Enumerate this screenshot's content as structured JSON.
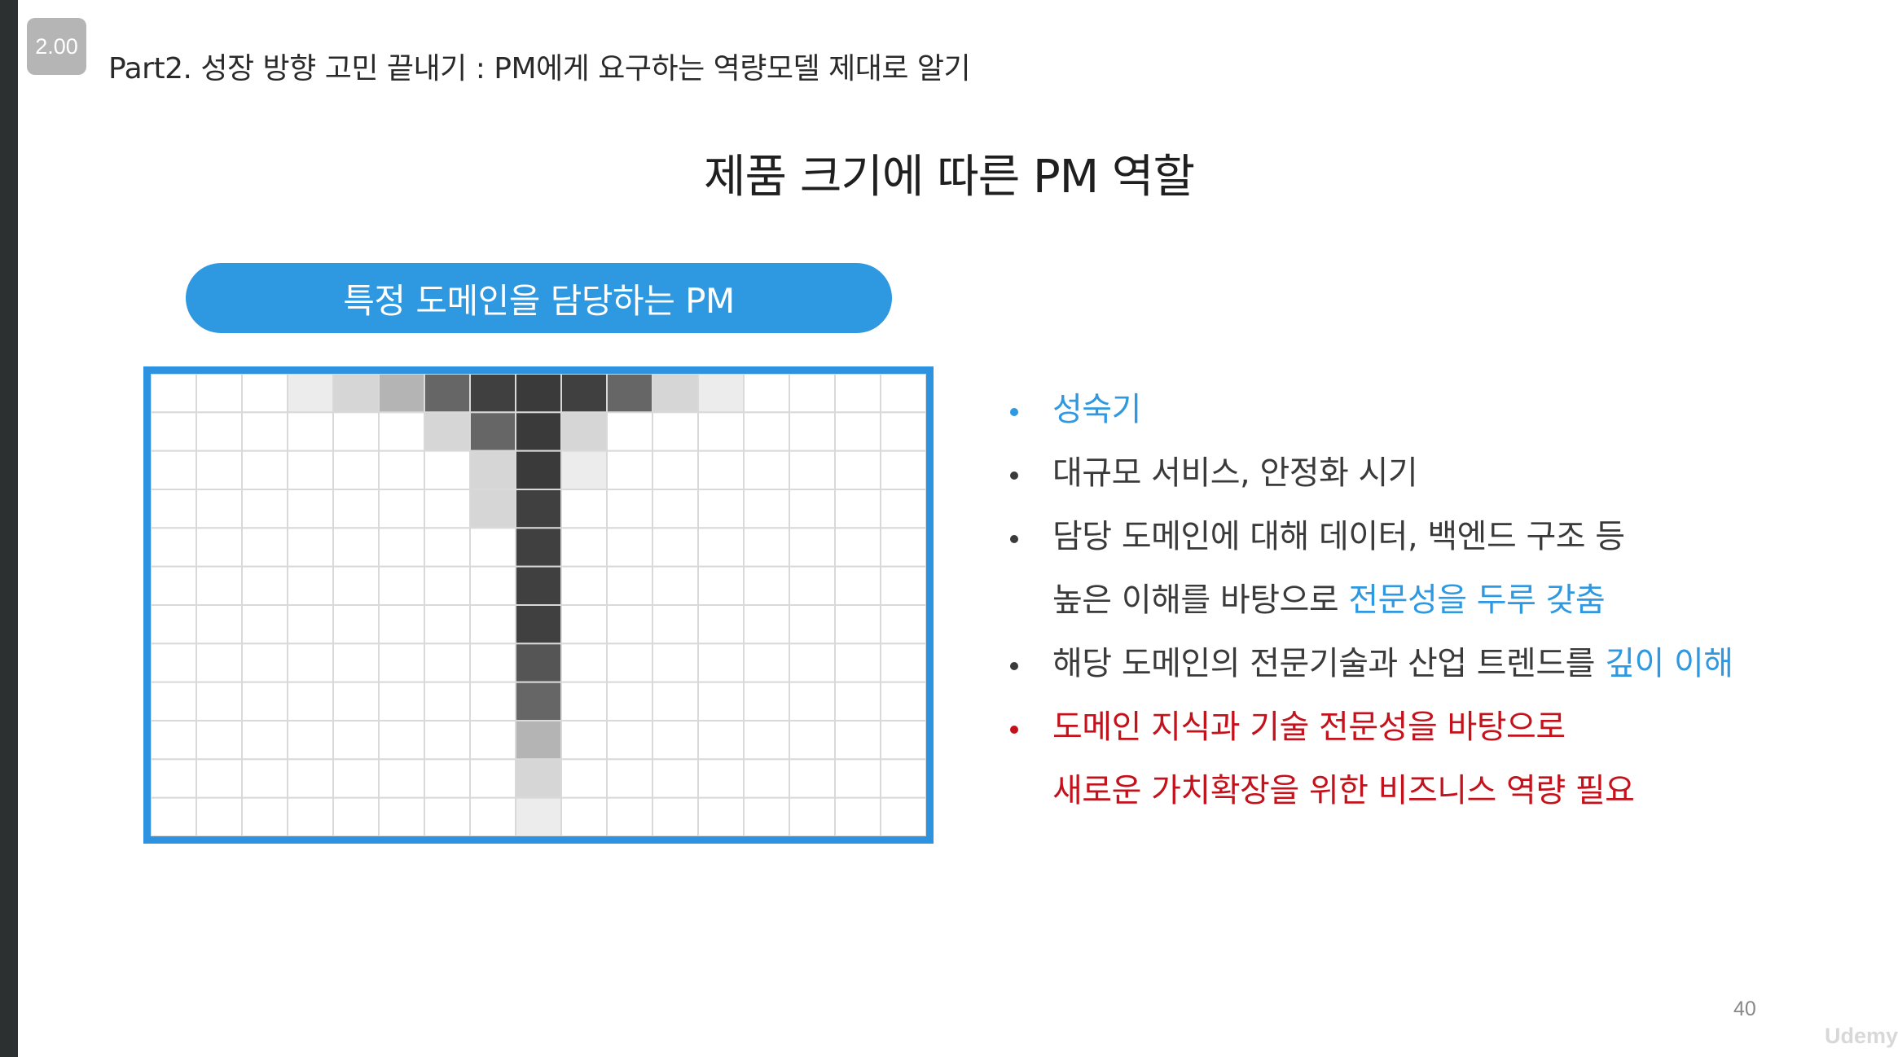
{
  "player": {
    "speed": "2.00"
  },
  "slide": {
    "header": "Part2. 성장 방향 고민 끝내기 : PM에게 요구하는 역량모델 제대로 알기",
    "title": "제품 크기에 따른 PM 역할",
    "pill_label": "특정 도메인을 담당하는 PM",
    "page_number": "40",
    "watermark": "Udemy"
  },
  "colors": {
    "accent_blue": "#2e98e1",
    "frame_blue": "#2d93e0",
    "emphasis_red": "#c3121b",
    "body_text": "#3a3a3a"
  },
  "grid": {
    "columns": 17,
    "rows": 12,
    "cell_shades": [
      [
        0,
        0,
        0,
        "#ececec",
        "#d6d6d6",
        "#b4b4b4",
        "#666666",
        "#404040",
        "#3a3a3a",
        "#404040",
        "#666666",
        "#d6d6d6",
        "#ececec",
        0,
        0,
        0,
        0
      ],
      [
        0,
        0,
        0,
        0,
        0,
        0,
        "#d6d6d6",
        "#666666",
        "#3a3a3a",
        "#d6d6d6",
        0,
        0,
        0,
        0,
        0,
        0,
        0
      ],
      [
        0,
        0,
        0,
        0,
        0,
        0,
        0,
        "#d6d6d6",
        "#3a3a3a",
        "#ececec",
        0,
        0,
        0,
        0,
        0,
        0,
        0
      ],
      [
        0,
        0,
        0,
        0,
        0,
        0,
        0,
        "#d6d6d6",
        "#404040",
        0,
        0,
        0,
        0,
        0,
        0,
        0,
        0
      ],
      [
        0,
        0,
        0,
        0,
        0,
        0,
        0,
        0,
        "#404040",
        0,
        0,
        0,
        0,
        0,
        0,
        0,
        0
      ],
      [
        0,
        0,
        0,
        0,
        0,
        0,
        0,
        0,
        "#404040",
        0,
        0,
        0,
        0,
        0,
        0,
        0,
        0
      ],
      [
        0,
        0,
        0,
        0,
        0,
        0,
        0,
        0,
        "#404040",
        0,
        0,
        0,
        0,
        0,
        0,
        0,
        0
      ],
      [
        0,
        0,
        0,
        0,
        0,
        0,
        0,
        0,
        "#555555",
        0,
        0,
        0,
        0,
        0,
        0,
        0,
        0
      ],
      [
        0,
        0,
        0,
        0,
        0,
        0,
        0,
        0,
        "#666666",
        0,
        0,
        0,
        0,
        0,
        0,
        0,
        0
      ],
      [
        0,
        0,
        0,
        0,
        0,
        0,
        0,
        0,
        "#b4b4b4",
        0,
        0,
        0,
        0,
        0,
        0,
        0,
        0
      ],
      [
        0,
        0,
        0,
        0,
        0,
        0,
        0,
        0,
        "#d6d6d6",
        0,
        0,
        0,
        0,
        0,
        0,
        0,
        0
      ],
      [
        0,
        0,
        0,
        0,
        0,
        0,
        0,
        0,
        "#ececec",
        0,
        0,
        0,
        0,
        0,
        0,
        0,
        0
      ]
    ]
  },
  "bullets": [
    {
      "dot": "blue",
      "parts": [
        {
          "text": "성숙기",
          "style": "blue"
        }
      ]
    },
    {
      "dot": "gray",
      "parts": [
        {
          "text": "대규모 서비스, 안정화 시기",
          "style": "plain"
        }
      ]
    },
    {
      "dot": "gray",
      "parts": [
        {
          "text": "담당 도메인에 대해 데이터, 백엔드 구조 등",
          "style": "plain"
        }
      ]
    },
    {
      "dot": "none",
      "parts": [
        {
          "text": "높은 이해를 바탕으로 ",
          "style": "plain"
        },
        {
          "text": "전문성을 두루 갖춤",
          "style": "blue"
        }
      ]
    },
    {
      "dot": "gray",
      "parts": [
        {
          "text": "해당 도메인의 전문기술과 산업 트렌드를 ",
          "style": "plain"
        },
        {
          "text": "깊이 이해",
          "style": "blue"
        }
      ]
    },
    {
      "dot": "red",
      "parts": [
        {
          "text": "도메인 지식과 기술 전문성을 바탕으로",
          "style": "red"
        }
      ]
    },
    {
      "dot": "none",
      "parts": [
        {
          "text": "새로운 가치확장을 위한 비즈니스 역량 필요",
          "style": "red"
        }
      ]
    }
  ]
}
